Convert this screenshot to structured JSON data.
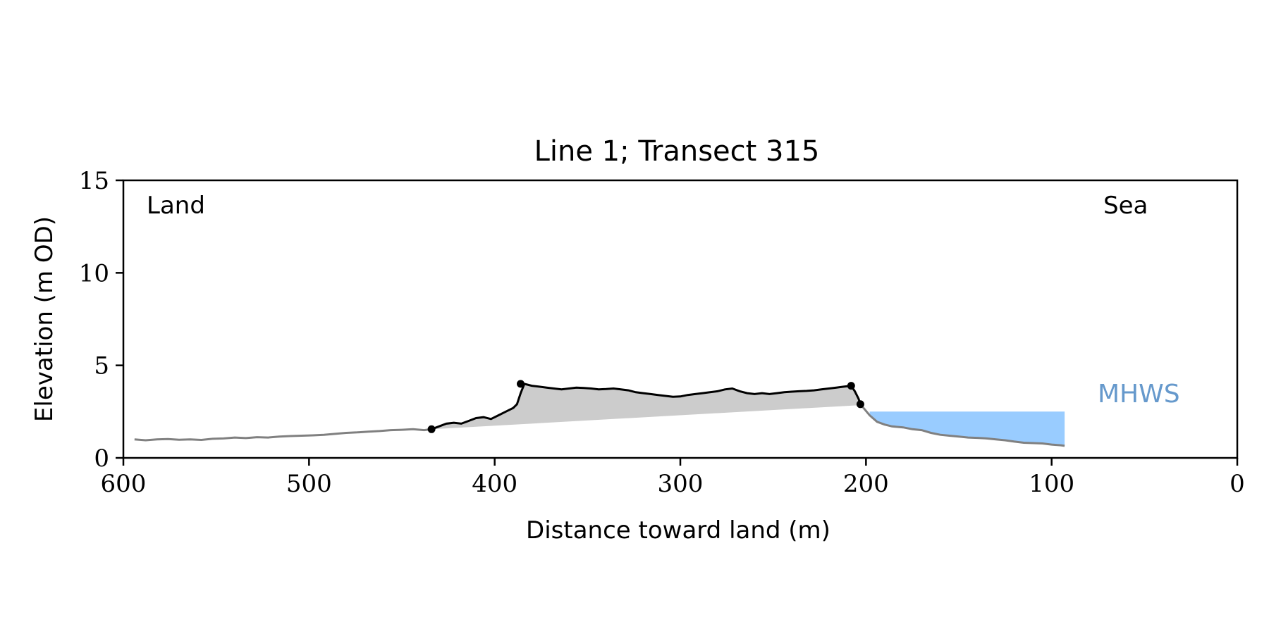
{
  "chart_data": {
    "type": "line",
    "title": "Line 1; Transect 315",
    "xlabel": "Distance toward land (m)",
    "ylabel": "Elevation (m OD)",
    "xlim": [
      600,
      0
    ],
    "ylim": [
      0,
      15
    ],
    "x_inverted": true,
    "grid": false,
    "xticks": [
      600,
      500,
      400,
      300,
      200,
      100,
      0
    ],
    "yticks": [
      0,
      5,
      10,
      15
    ],
    "annotations": {
      "land": "Land",
      "sea": "Sea",
      "mhws": "MHWS"
    },
    "colors": {
      "profile": "#808080",
      "dune": "#000000",
      "dune_fill": "#cccccc",
      "water": "#99ccff",
      "mhws_text": "#6699cc"
    },
    "mhws": {
      "elevation": 2.5,
      "x_start": 198,
      "x_end": 93
    },
    "profile": {
      "x": [
        594,
        588,
        582,
        576,
        570,
        564,
        558,
        552,
        546,
        540,
        534,
        528,
        522,
        516,
        510,
        504,
        498,
        492,
        486,
        480,
        474,
        468,
        462,
        456,
        450,
        444,
        438,
        434
      ],
      "y": [
        1.0,
        0.95,
        1.0,
        1.02,
        0.98,
        1.0,
        0.97,
        1.03,
        1.05,
        1.1,
        1.07,
        1.12,
        1.1,
        1.15,
        1.18,
        1.2,
        1.22,
        1.25,
        1.3,
        1.35,
        1.38,
        1.42,
        1.45,
        1.5,
        1.52,
        1.55,
        1.5,
        1.55
      ]
    },
    "sea_profile": {
      "x": [
        203,
        198,
        194,
        190,
        186,
        180,
        175,
        170,
        165,
        160,
        155,
        150,
        145,
        140,
        135,
        130,
        125,
        120,
        115,
        110,
        105,
        100,
        95,
        93
      ],
      "y": [
        2.9,
        2.3,
        1.95,
        1.8,
        1.7,
        1.65,
        1.55,
        1.5,
        1.35,
        1.25,
        1.2,
        1.15,
        1.1,
        1.08,
        1.05,
        1.0,
        0.95,
        0.88,
        0.82,
        0.8,
        0.78,
        0.72,
        0.68,
        0.65
      ]
    },
    "dune_profile": {
      "x": [
        434,
        430,
        426,
        422,
        418,
        414,
        410,
        406,
        402,
        398,
        394,
        390,
        388,
        386,
        384,
        380,
        376,
        372,
        368,
        364,
        360,
        356,
        352,
        348,
        344,
        340,
        336,
        332,
        328,
        324,
        320,
        316,
        312,
        308,
        304,
        300,
        296,
        292,
        288,
        284,
        280,
        276,
        272,
        268,
        264,
        260,
        256,
        252,
        248,
        244,
        240,
        236,
        232,
        228,
        224,
        220,
        216,
        212,
        208,
        206,
        204,
        203
      ],
      "y": [
        1.55,
        1.7,
        1.85,
        1.9,
        1.85,
        2.0,
        2.15,
        2.2,
        2.1,
        2.3,
        2.5,
        2.7,
        2.9,
        3.5,
        4.0,
        3.9,
        3.85,
        3.8,
        3.75,
        3.7,
        3.75,
        3.8,
        3.78,
        3.75,
        3.7,
        3.72,
        3.75,
        3.7,
        3.65,
        3.55,
        3.5,
        3.45,
        3.4,
        3.35,
        3.3,
        3.32,
        3.4,
        3.45,
        3.5,
        3.55,
        3.6,
        3.7,
        3.75,
        3.6,
        3.5,
        3.45,
        3.5,
        3.45,
        3.5,
        3.55,
        3.58,
        3.6,
        3.62,
        3.65,
        3.7,
        3.75,
        3.8,
        3.85,
        3.9,
        3.6,
        3.2,
        2.9
      ]
    },
    "dune_base": {
      "x": [
        434,
        203
      ],
      "y": [
        1.55,
        2.85
      ]
    },
    "markers": [
      {
        "x": 434,
        "y": 1.55
      },
      {
        "x": 386,
        "y": 4.0
      },
      {
        "x": 208,
        "y": 3.9
      },
      {
        "x": 203,
        "y": 2.9
      }
    ]
  }
}
